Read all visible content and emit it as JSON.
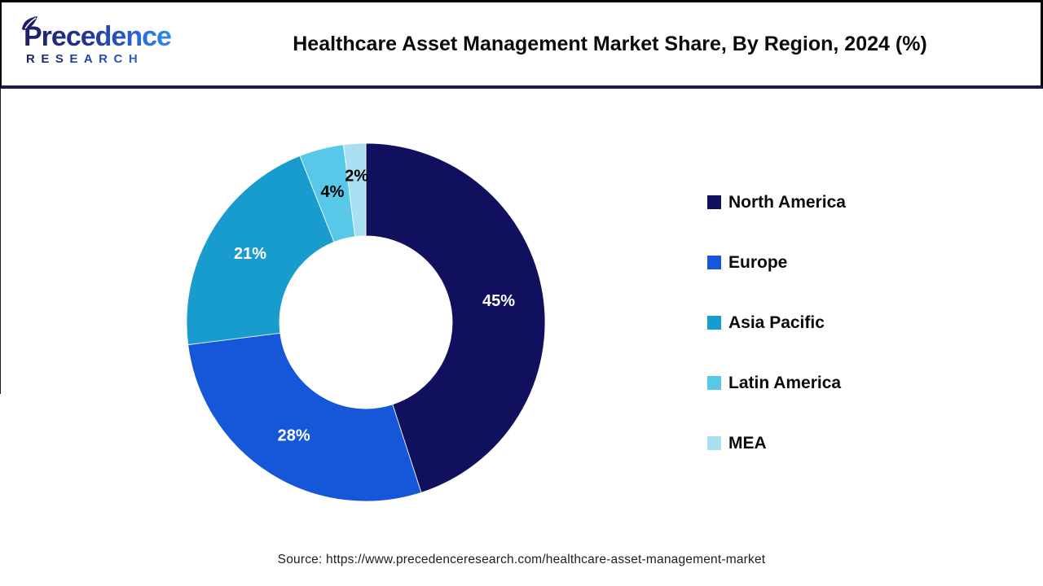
{
  "header": {
    "logo": {
      "line1": "Precedence",
      "line2": "RESEARCH"
    },
    "title": "Healthcare Asset Management Market Share, By Region, 2024 (%)"
  },
  "chart_data": {
    "type": "pie",
    "variant": "donut",
    "title": "Healthcare Asset Management Market Share, By Region, 2024 (%)",
    "categories": [
      "North America",
      "Europe",
      "Asia Pacific",
      "Latin America",
      "MEA"
    ],
    "values": [
      45,
      28,
      21,
      4,
      2
    ],
    "unit": "%",
    "colors": [
      "#10105E",
      "#1656D9",
      "#189BCD",
      "#58C8E8",
      "#A9DFF0"
    ],
    "slice_labels": [
      "45%",
      "28%",
      "21%",
      "4%",
      "2%"
    ],
    "slice_label_colors": [
      "#ffffff",
      "#ffffff",
      "#ffffff",
      "#000000",
      "#000000"
    ],
    "label_radius_px": [
      165,
      165,
      165,
      165,
      180
    ],
    "start_angle_deg": 0,
    "direction": "clockwise",
    "inner_radius_ratio": 0.482,
    "legend_position": "right",
    "grid": false
  },
  "footer": {
    "source": "Source: https://www.precedenceresearch.com/healthcare-asset-management-market"
  }
}
